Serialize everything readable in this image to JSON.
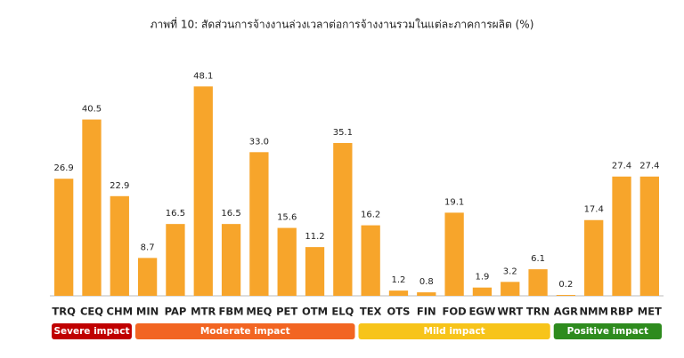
{
  "chart_data": {
    "type": "bar",
    "title": "ภาพที่ 10: สัดส่วนการจ้างงานล่วงเวลาต่อการจ้างงานรวมในแต่ละภาคการผลิต (%)",
    "categories": [
      "TRQ",
      "CEQ",
      "CHM",
      "MIN",
      "PAP",
      "MTR",
      "FBM",
      "MEQ",
      "PET",
      "OTM",
      "ELQ",
      "TEX",
      "OTS",
      "FIN",
      "FOD",
      "EGW",
      "WRT",
      "TRN",
      "AGR",
      "NMM",
      "RBP",
      "MET"
    ],
    "values": [
      26.9,
      40.5,
      22.9,
      8.7,
      16.5,
      48.1,
      16.5,
      33.0,
      15.6,
      11.2,
      35.1,
      16.2,
      1.2,
      0.8,
      19.1,
      1.9,
      3.2,
      6.1,
      0.2,
      17.4,
      27.4,
      27.4
    ],
    "value_labels": [
      "26.9",
      "40.5",
      "22.9",
      "8.7",
      "16.5",
      "48.1",
      "16.5",
      "33.0",
      "15.6",
      "11.2",
      "35.1",
      "16.2",
      "1.2",
      "0.8",
      "19.1",
      "1.9",
      "3.2",
      "6.1",
      "0.2",
      "17.4",
      "27.4",
      "27.4"
    ],
    "color": "#f7a52b",
    "ylim": [
      0,
      50
    ],
    "groups": [
      {
        "name": "Severe impact",
        "color": "#c00000",
        "count": 3
      },
      {
        "name": "Moderate impact",
        "color": "#f26522",
        "count": 8
      },
      {
        "name": "Mild impact",
        "color": "#f7c41a",
        "count": 7
      },
      {
        "name": "Positive impact",
        "color": "#2e8b1e",
        "count": 4
      }
    ]
  }
}
